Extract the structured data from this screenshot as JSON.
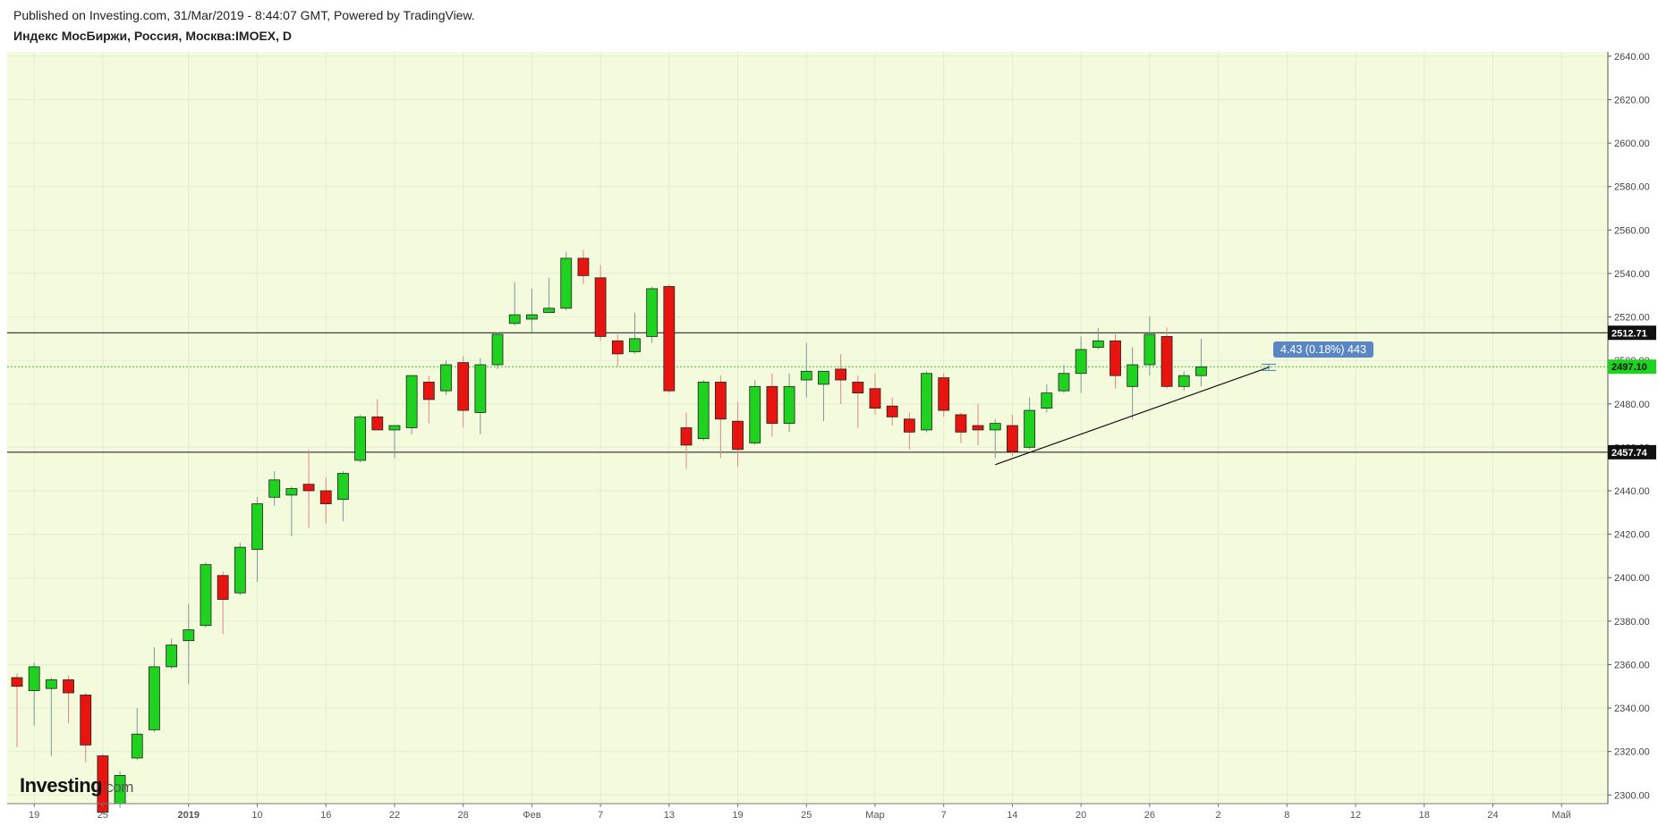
{
  "header": {
    "published": "Published on Investing.com, 31/Mar/2019 - 8:44:07 GMT, Powered by TradingView.",
    "symbol": "Индекс МосБиржи, Россия, Москва:IMOEX, D"
  },
  "logo": {
    "main": "Investing",
    "suffix": ".com"
  },
  "tooltip": {
    "text": "4.43 (0.18%) 443"
  },
  "colors": {
    "up": "#1fd21f",
    "down": "#e8140f",
    "background": "#f3fbdc",
    "grid": "#e2ecd2"
  },
  "chart_data": {
    "type": "candlestick",
    "title": "Индекс МосБиржи, Россия, Москва:IMOEX, D",
    "ylim": [
      2296,
      2642
    ],
    "yticks": [
      2300,
      2320,
      2340,
      2360,
      2380,
      2400,
      2420,
      2440,
      2460,
      2480,
      2500,
      2520,
      2540,
      2560,
      2580,
      2600,
      2620,
      2640
    ],
    "xticks": [
      {
        "label": "19",
        "i": 1
      },
      {
        "label": "25",
        "i": 5
      },
      {
        "label": "2019",
        "i": 10
      },
      {
        "label": "10",
        "i": 14
      },
      {
        "label": "16",
        "i": 18
      },
      {
        "label": "22",
        "i": 22
      },
      {
        "label": "28",
        "i": 26
      },
      {
        "label": "Фев",
        "i": 30
      },
      {
        "label": "7",
        "i": 34
      },
      {
        "label": "13",
        "i": 38
      },
      {
        "label": "19",
        "i": 42
      },
      {
        "label": "25",
        "i": 46
      },
      {
        "label": "Мар",
        "i": 50
      },
      {
        "label": "7",
        "i": 54
      },
      {
        "label": "14",
        "i": 58
      },
      {
        "label": "20",
        "i": 62
      },
      {
        "label": "26",
        "i": 66
      },
      {
        "label": "2",
        "i": 70
      },
      {
        "label": "8",
        "i": 74
      },
      {
        "label": "12",
        "i": 78
      },
      {
        "label": "18",
        "i": 82
      },
      {
        "label": "24",
        "i": 86
      },
      {
        "label": "Май",
        "i": 90
      }
    ],
    "candles": [
      {
        "o": 2354,
        "h": 2356,
        "l": 2322,
        "c": 2350
      },
      {
        "o": 2348,
        "h": 2361,
        "l": 2332,
        "c": 2359
      },
      {
        "o": 2349,
        "h": 2354,
        "l": 2318,
        "c": 2353
      },
      {
        "o": 2353,
        "h": 2355,
        "l": 2333,
        "c": 2347
      },
      {
        "o": 2346,
        "h": 2347,
        "l": 2315,
        "c": 2323
      },
      {
        "o": 2318,
        "h": 2319,
        "l": 2291,
        "c": 2292
      },
      {
        "o": 2296,
        "h": 2311,
        "l": 2294,
        "c": 2309
      },
      {
        "o": 2317,
        "h": 2340,
        "l": 2316,
        "c": 2328
      },
      {
        "o": 2330,
        "h": 2368,
        "l": 2329,
        "c": 2359
      },
      {
        "o": 2359,
        "h": 2372,
        "l": 2358,
        "c": 2369
      },
      {
        "o": 2371,
        "h": 2388,
        "l": 2351,
        "c": 2376
      },
      {
        "o": 2378,
        "h": 2407,
        "l": 2377,
        "c": 2406
      },
      {
        "o": 2401,
        "h": 2403,
        "l": 2374,
        "c": 2390
      },
      {
        "o": 2393,
        "h": 2416,
        "l": 2392,
        "c": 2414
      },
      {
        "o": 2413,
        "h": 2437,
        "l": 2398,
        "c": 2434
      },
      {
        "o": 2437,
        "h": 2449,
        "l": 2433,
        "c": 2445
      },
      {
        "o": 2438,
        "h": 2442,
        "l": 2419,
        "c": 2441
      },
      {
        "o": 2443,
        "h": 2459,
        "l": 2423,
        "c": 2440
      },
      {
        "o": 2440,
        "h": 2446,
        "l": 2425,
        "c": 2434
      },
      {
        "o": 2436,
        "h": 2449,
        "l": 2426,
        "c": 2448
      },
      {
        "o": 2454,
        "h": 2475,
        "l": 2453,
        "c": 2474
      },
      {
        "o": 2474,
        "h": 2482,
        "l": 2468,
        "c": 2468
      },
      {
        "o": 2468,
        "h": 2470,
        "l": 2455,
        "c": 2470
      },
      {
        "o": 2469,
        "h": 2492,
        "l": 2466,
        "c": 2493
      },
      {
        "o": 2490,
        "h": 2493,
        "l": 2471,
        "c": 2482
      },
      {
        "o": 2486,
        "h": 2500,
        "l": 2484,
        "c": 2498
      },
      {
        "o": 2499,
        "h": 2502,
        "l": 2469,
        "c": 2477
      },
      {
        "o": 2476,
        "h": 2501,
        "l": 2466,
        "c": 2498
      },
      {
        "o": 2498,
        "h": 2513,
        "l": 2496,
        "c": 2512
      },
      {
        "o": 2517,
        "h": 2536,
        "l": 2516,
        "c": 2521
      },
      {
        "o": 2519,
        "h": 2533,
        "l": 2513,
        "c": 2521
      },
      {
        "o": 2522,
        "h": 2538,
        "l": 2522,
        "c": 2524
      },
      {
        "o": 2524,
        "h": 2550,
        "l": 2523,
        "c": 2547
      },
      {
        "o": 2547,
        "h": 2551,
        "l": 2535,
        "c": 2539
      },
      {
        "o": 2538,
        "h": 2544,
        "l": 2509,
        "c": 2511
      },
      {
        "o": 2509,
        "h": 2512,
        "l": 2497,
        "c": 2503
      },
      {
        "o": 2504,
        "h": 2522,
        "l": 2503,
        "c": 2510
      },
      {
        "o": 2511,
        "h": 2534,
        "l": 2508,
        "c": 2533
      },
      {
        "o": 2534,
        "h": 2535,
        "l": 2485,
        "c": 2486
      },
      {
        "o": 2469,
        "h": 2476,
        "l": 2450,
        "c": 2461
      },
      {
        "o": 2464,
        "h": 2491,
        "l": 2463,
        "c": 2490
      },
      {
        "o": 2490,
        "h": 2493,
        "l": 2455,
        "c": 2473
      },
      {
        "o": 2472,
        "h": 2481,
        "l": 2451,
        "c": 2459
      },
      {
        "o": 2462,
        "h": 2491,
        "l": 2461,
        "c": 2488
      },
      {
        "o": 2488,
        "h": 2494,
        "l": 2465,
        "c": 2471
      },
      {
        "o": 2471,
        "h": 2494,
        "l": 2467,
        "c": 2488
      },
      {
        "o": 2491,
        "h": 2508,
        "l": 2483,
        "c": 2495
      },
      {
        "o": 2489,
        "h": 2495,
        "l": 2472,
        "c": 2495
      },
      {
        "o": 2496,
        "h": 2503,
        "l": 2480,
        "c": 2491
      },
      {
        "o": 2490,
        "h": 2493,
        "l": 2469,
        "c": 2485
      },
      {
        "o": 2487,
        "h": 2494,
        "l": 2475,
        "c": 2478
      },
      {
        "o": 2479,
        "h": 2483,
        "l": 2470,
        "c": 2474
      },
      {
        "o": 2473,
        "h": 2476,
        "l": 2459,
        "c": 2467
      },
      {
        "o": 2468,
        "h": 2495,
        "l": 2467,
        "c": 2494
      },
      {
        "o": 2492,
        "h": 2494,
        "l": 2474,
        "c": 2477
      },
      {
        "o": 2475,
        "h": 2476,
        "l": 2462,
        "c": 2467
      },
      {
        "o": 2470,
        "h": 2480,
        "l": 2461,
        "c": 2468
      },
      {
        "o": 2468,
        "h": 2473,
        "l": 2455,
        "c": 2471
      },
      {
        "o": 2470,
        "h": 2475,
        "l": 2456,
        "c": 2458
      },
      {
        "o": 2460,
        "h": 2483,
        "l": 2459,
        "c": 2477
      },
      {
        "o": 2478,
        "h": 2489,
        "l": 2476,
        "c": 2485
      },
      {
        "o": 2486,
        "h": 2498,
        "l": 2485,
        "c": 2494
      },
      {
        "o": 2494,
        "h": 2511,
        "l": 2485,
        "c": 2505
      },
      {
        "o": 2506,
        "h": 2515,
        "l": 2505,
        "c": 2509
      },
      {
        "o": 2509,
        "h": 2512,
        "l": 2487,
        "c": 2493
      },
      {
        "o": 2488,
        "h": 2506,
        "l": 2473,
        "c": 2498
      },
      {
        "o": 2498,
        "h": 2520,
        "l": 2493,
        "c": 2512
      },
      {
        "o": 2511,
        "h": 2515,
        "l": 2487,
        "c": 2488
      },
      {
        "o": 2488,
        "h": 2495,
        "l": 2486,
        "c": 2493
      },
      {
        "o": 2493,
        "h": 2510,
        "l": 2488,
        "c": 2497
      }
    ],
    "horizontal_lines": [
      {
        "value": 2512.71,
        "label": "2512.71",
        "style": "solid"
      },
      {
        "value": 2457.74,
        "label": "2457.74",
        "style": "solid"
      },
      {
        "value": 2497.1,
        "label": "2497.10",
        "style": "dotted"
      }
    ],
    "trendline": {
      "from": {
        "i": 57,
        "v": 2452
      },
      "to": {
        "i": 73,
        "v": 2497
      }
    }
  }
}
